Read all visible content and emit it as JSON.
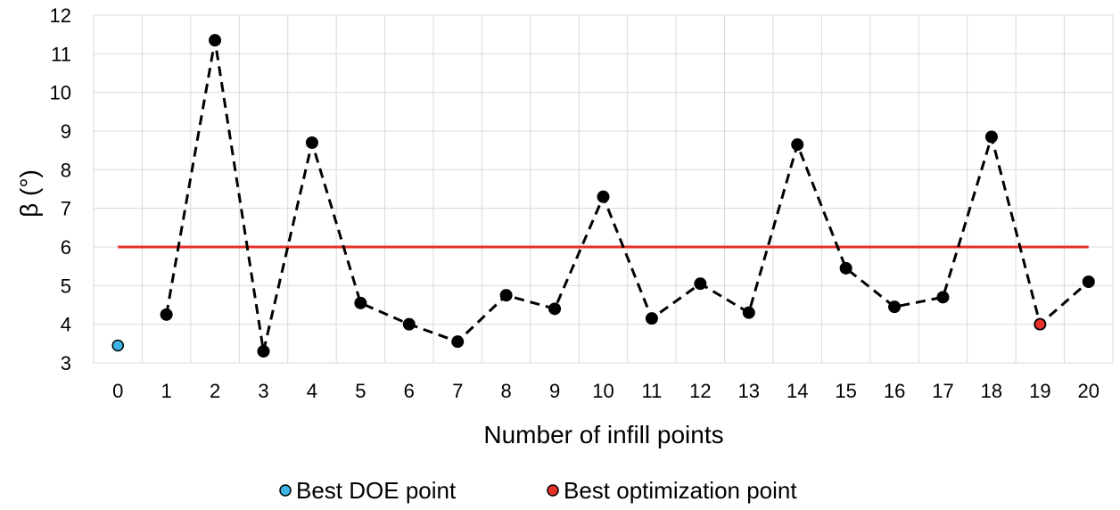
{
  "chart_data": {
    "type": "line",
    "xlabel": "Number of infill points",
    "ylabel": "β (°)",
    "x": [
      0,
      1,
      2,
      3,
      4,
      5,
      6,
      7,
      8,
      9,
      10,
      11,
      12,
      13,
      14,
      15,
      16,
      17,
      18,
      19,
      20
    ],
    "xlim": [
      -0.5,
      20.5
    ],
    "ylim": [
      3,
      12
    ],
    "yticks": [
      3,
      4,
      5,
      6,
      7,
      8,
      9,
      10,
      11,
      12
    ],
    "grid": true,
    "series": [
      {
        "style": "dashed-black-markers",
        "x": [
          1,
          2,
          3,
          4,
          5,
          6,
          7,
          8,
          9,
          10,
          11,
          12,
          13,
          14,
          15,
          16,
          17,
          18,
          19,
          20
        ],
        "values": [
          4.25,
          11.35,
          3.3,
          8.7,
          4.55,
          4.0,
          3.55,
          4.75,
          4.4,
          7.3,
          4.15,
          5.05,
          4.3,
          8.65,
          5.45,
          4.45,
          4.7,
          8.85,
          4.0,
          5.1
        ]
      },
      {
        "name": "Best DOE point",
        "color": "#3cb4e6",
        "x": [
          0
        ],
        "values": [
          3.45
        ]
      },
      {
        "name": "Best optimization point",
        "color": "#e8302a",
        "x": [
          19
        ],
        "values": [
          4.0
        ]
      }
    ],
    "reference_line": {
      "y": 6,
      "color": "#e8302a"
    },
    "legend_position": "bottom-center"
  }
}
